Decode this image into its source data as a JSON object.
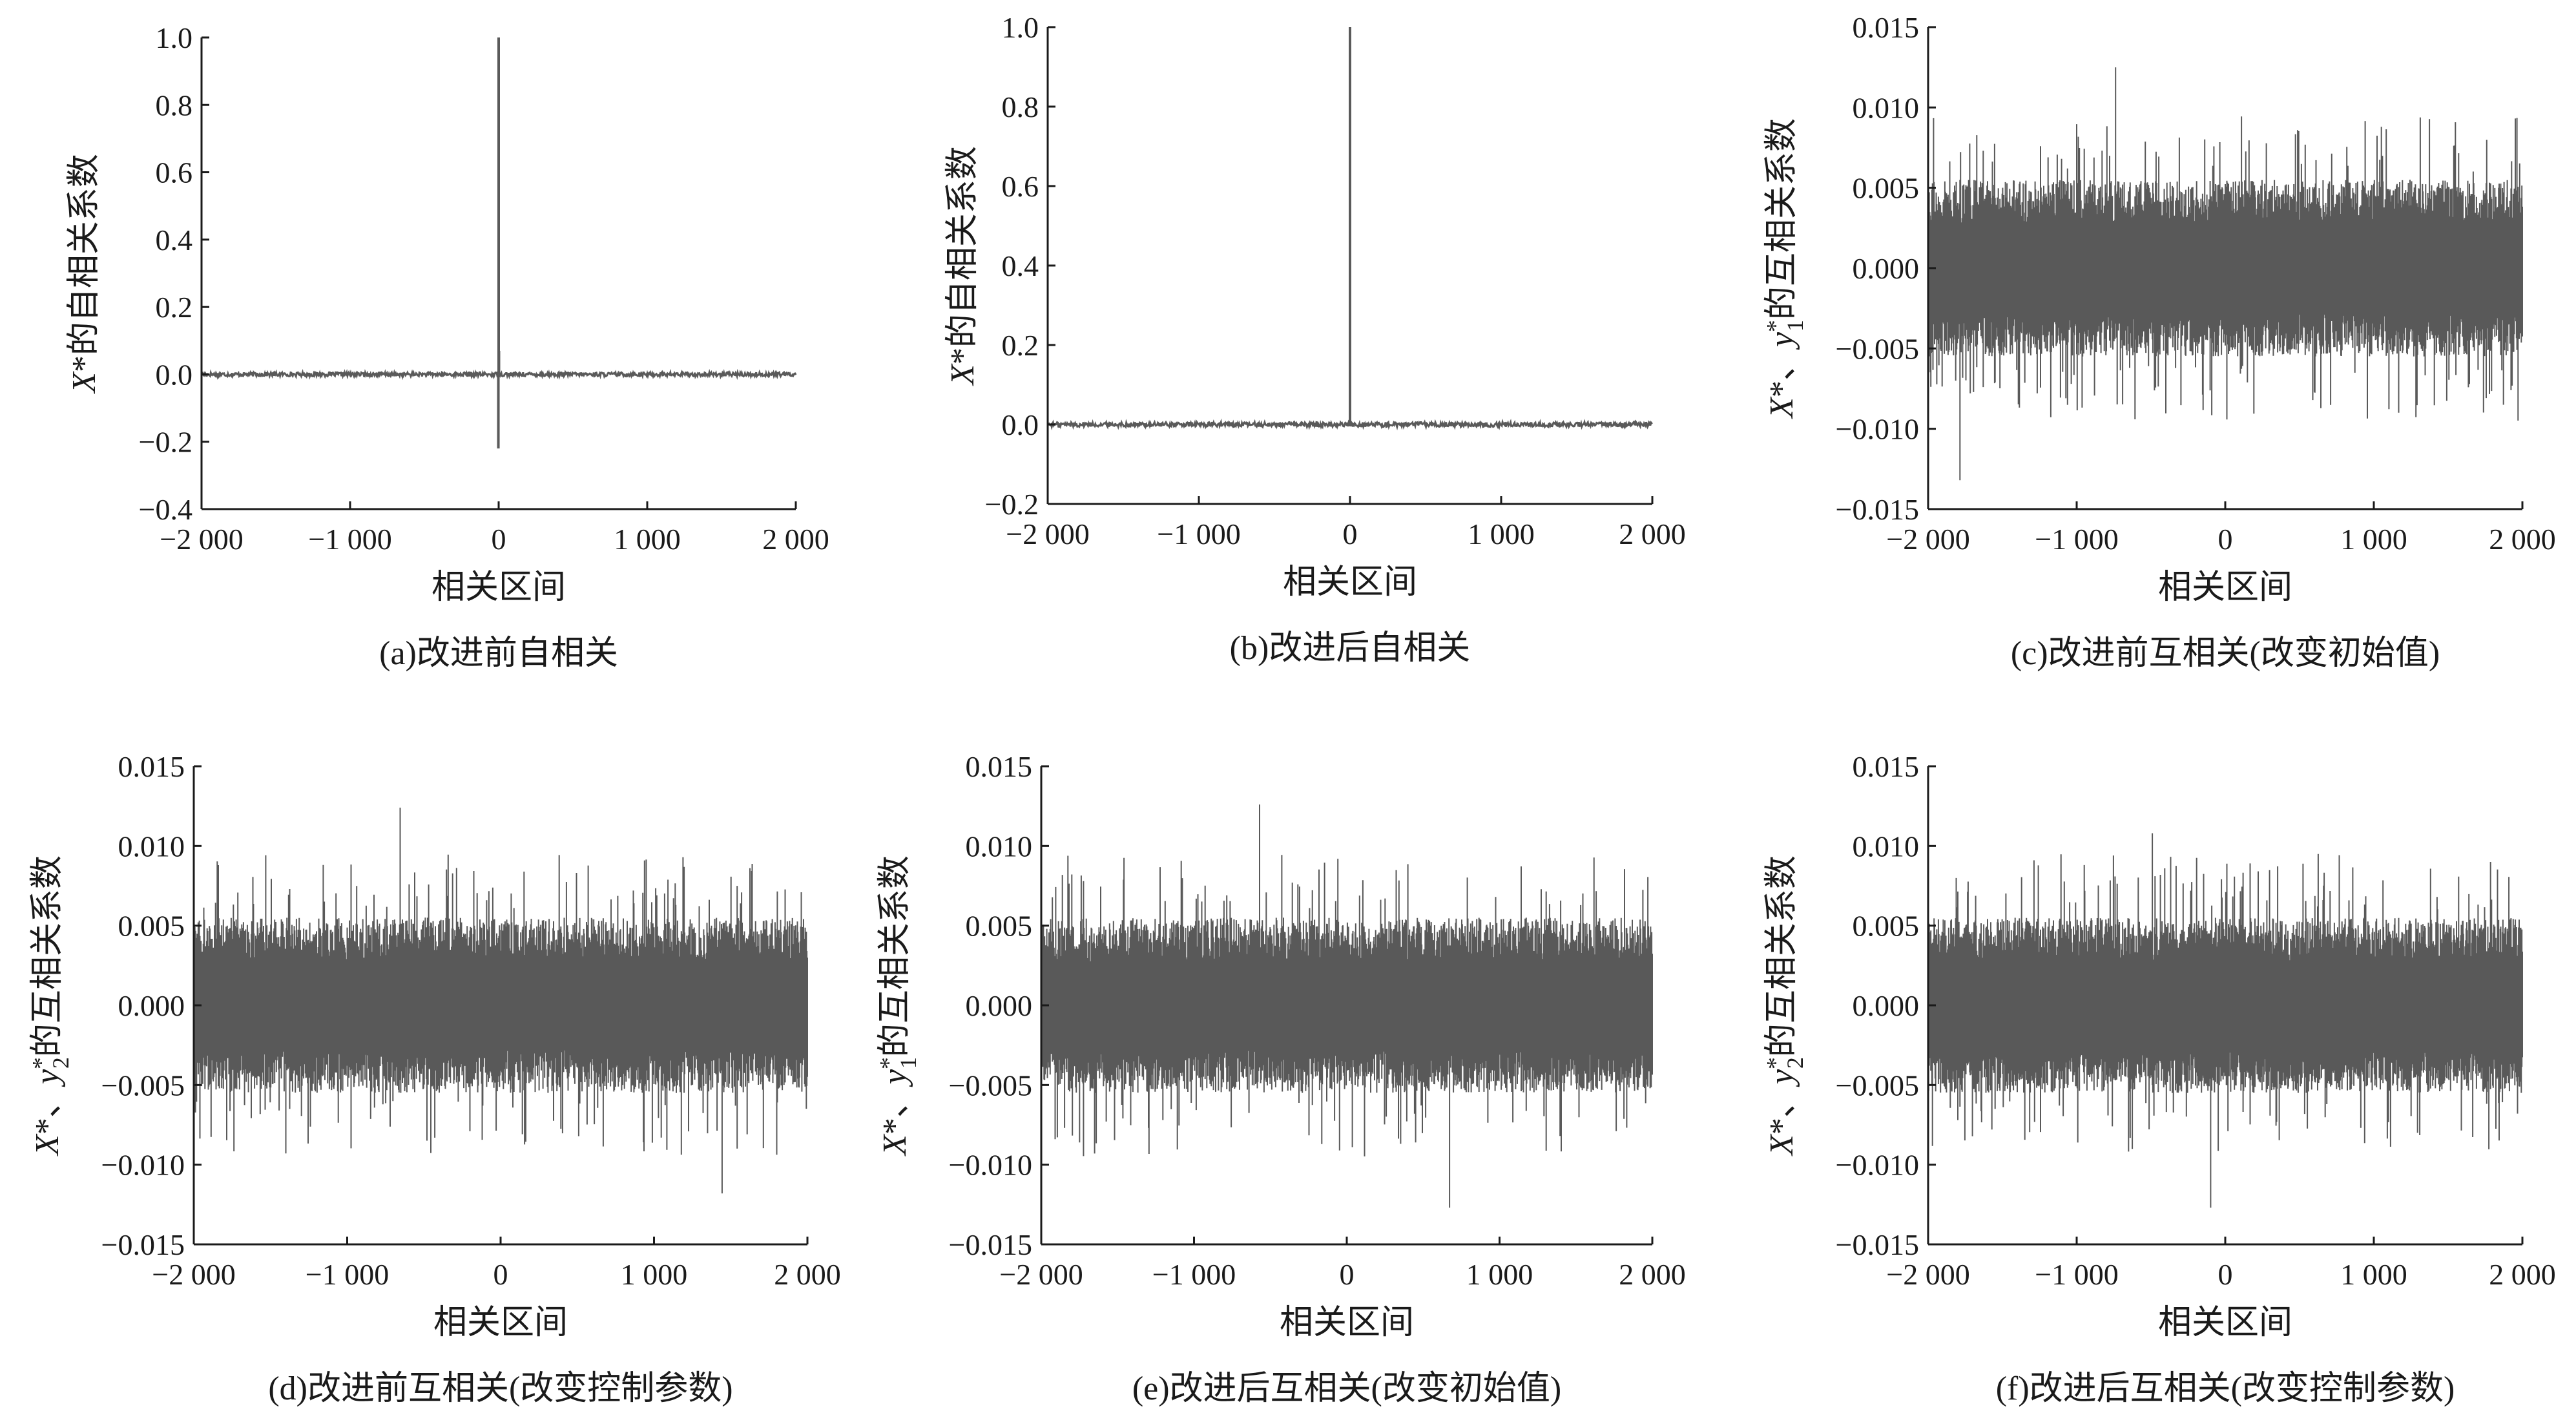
{
  "chart_data": [
    {
      "id": "a",
      "type": "line",
      "caption": "(a)改进前自相关",
      "xlabel": "相关区间",
      "ylabel": {
        "var": "X",
        "sup": "*",
        "rest": "的自相关系数"
      },
      "xlim": [
        -2000,
        2000
      ],
      "ylim": [
        -0.4,
        1.0
      ],
      "xticks": [
        -2000,
        -1000,
        0,
        1000,
        2000
      ],
      "xtick_labels": [
        "−2 000",
        "−1 000",
        "0",
        "1 000",
        "2 000"
      ],
      "yticks": [
        -0.4,
        -0.2,
        0.0,
        0.2,
        0.4,
        0.6,
        0.8,
        1.0
      ],
      "ytick_labels": [
        "−0.4",
        "−0.2",
        "0.0",
        "0.2",
        "0.4",
        "0.6",
        "0.8",
        "1.0"
      ],
      "series": [
        {
          "kind": "autocorr",
          "baseline": 0.0,
          "noise_amp": 0.006,
          "peak": {
            "x": 0,
            "y": 1.0
          },
          "side_peaks": [
            {
              "x": -2,
              "y": -0.22
            },
            {
              "x": 2,
              "y": 0.07
            }
          ]
        }
      ]
    },
    {
      "id": "b",
      "type": "line",
      "caption": "(b)改进后自相关",
      "xlabel": "相关区间",
      "ylabel": {
        "var": "X",
        "sup": "*",
        "rest": "的自相关系数"
      },
      "xlim": [
        -2000,
        2000
      ],
      "ylim": [
        -0.2,
        1.0
      ],
      "xticks": [
        -2000,
        -1000,
        0,
        1000,
        2000
      ],
      "xtick_labels": [
        "−2 000",
        "−1 000",
        "0",
        "1 000",
        "2 000"
      ],
      "yticks": [
        -0.2,
        0.0,
        0.2,
        0.4,
        0.6,
        0.8,
        1.0
      ],
      "ytick_labels": [
        "−0.2",
        "0.0",
        "0.2",
        "0.4",
        "0.6",
        "0.8",
        "1.0"
      ],
      "series": [
        {
          "kind": "autocorr",
          "baseline": 0.0,
          "noise_amp": 0.006,
          "peak": {
            "x": 0,
            "y": 1.0
          },
          "side_peaks": []
        }
      ]
    },
    {
      "id": "c",
      "type": "line",
      "caption": "(c)改进前互相关(改变初始值)",
      "xlabel": "相关区间",
      "ylabel": {
        "var": "X",
        "sup": "*",
        "mid": "、",
        "var2": "y",
        "sup2": "*",
        "sub2": "1",
        "rest": "的互相关系数"
      },
      "xlim": [
        -2000,
        2000
      ],
      "ylim": [
        -0.015,
        0.015
      ],
      "xticks": [
        -2000,
        -1000,
        0,
        1000,
        2000
      ],
      "xtick_labels": [
        "−2 000",
        "−1 000",
        "0",
        "1 000",
        "2 000"
      ],
      "yticks": [
        -0.015,
        -0.01,
        -0.005,
        0.0,
        0.005,
        0.01,
        0.015
      ],
      "ytick_labels": [
        "−0.015",
        "−0.010",
        "−0.005",
        "0.000",
        "0.005",
        "0.010",
        "0.015"
      ],
      "series": [
        {
          "kind": "crosscorr",
          "typical_amp": 0.005,
          "max": 0.0125,
          "min": -0.0132
        }
      ]
    },
    {
      "id": "d",
      "type": "line",
      "caption": "(d)改进前互相关(改变控制参数)",
      "xlabel": "相关区间",
      "ylabel": {
        "var": "X",
        "sup": "*",
        "mid": "、",
        "var2": "y",
        "sup2": "*",
        "sub2": "2",
        "rest": "的互相关系数"
      },
      "xlim": [
        -2000,
        2000
      ],
      "ylim": [
        -0.015,
        0.015
      ],
      "xticks": [
        -2000,
        -1000,
        0,
        1000,
        2000
      ],
      "xtick_labels": [
        "−2 000",
        "−1 000",
        "0",
        "1 000",
        "2 000"
      ],
      "yticks": [
        -0.015,
        -0.01,
        -0.005,
        0.0,
        0.005,
        0.01,
        0.015
      ],
      "ytick_labels": [
        "−0.015",
        "−0.010",
        "−0.005",
        "0.000",
        "0.005",
        "0.010",
        "0.015"
      ],
      "series": [
        {
          "kind": "crosscorr",
          "typical_amp": 0.005,
          "max": 0.0124,
          "min": -0.0118
        }
      ]
    },
    {
      "id": "e",
      "type": "line",
      "caption": "(e)改进后互相关(改变初始值)",
      "xlabel": "相关区间",
      "ylabel": {
        "var": "X",
        "sup": "*",
        "mid": "、",
        "var2": "y",
        "sup2": "*",
        "sub2": "1",
        "rest": "的互相关系数"
      },
      "xlim": [
        -2000,
        2000
      ],
      "ylim": [
        -0.015,
        0.015
      ],
      "xticks": [
        -2000,
        -1000,
        0,
        1000,
        2000
      ],
      "xtick_labels": [
        "−2 000",
        "−1 000",
        "0",
        "1 000",
        "2 000"
      ],
      "yticks": [
        -0.015,
        -0.01,
        -0.005,
        0.0,
        0.005,
        0.01,
        0.015
      ],
      "ytick_labels": [
        "−0.015",
        "−0.010",
        "−0.005",
        "0.000",
        "0.005",
        "0.010",
        "0.015"
      ],
      "series": [
        {
          "kind": "crosscorr",
          "typical_amp": 0.005,
          "max": 0.0126,
          "min": -0.0127
        }
      ]
    },
    {
      "id": "f",
      "type": "line",
      "caption": "(f)改进后互相关(改变控制参数)",
      "xlabel": "相关区间",
      "ylabel": {
        "var": "X",
        "sup": "*",
        "mid": "、",
        "var2": "y",
        "sup2": "*",
        "sub2": "2",
        "rest": "的互相关系数"
      },
      "xlim": [
        -2000,
        2000
      ],
      "ylim": [
        -0.015,
        0.015
      ],
      "xticks": [
        -2000,
        -1000,
        0,
        1000,
        2000
      ],
      "xtick_labels": [
        "−2 000",
        "−1 000",
        "0",
        "1 000",
        "2 000"
      ],
      "yticks": [
        -0.015,
        -0.01,
        -0.005,
        0.0,
        0.005,
        0.01,
        0.015
      ],
      "ytick_labels": [
        "−0.015",
        "−0.010",
        "−0.005",
        "0.000",
        "0.005",
        "0.010",
        "0.015"
      ],
      "series": [
        {
          "kind": "crosscorr",
          "typical_amp": 0.005,
          "max": 0.0108,
          "min": -0.0127
        }
      ]
    }
  ],
  "style": {
    "line_color": "#595959",
    "axis_color": "#1a1a1a",
    "background": "#ffffff"
  }
}
